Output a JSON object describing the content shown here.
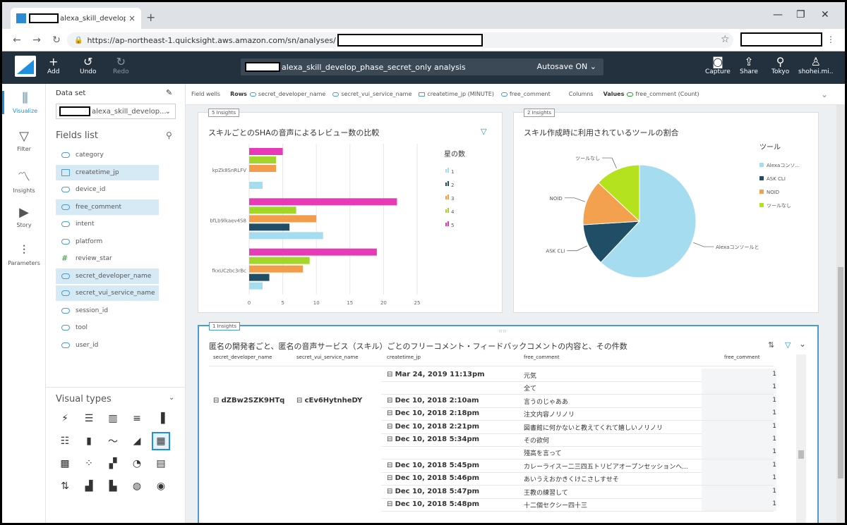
{
  "browser": {
    "tab_title": "alexa_skill_develop_phase",
    "tab_close": "×",
    "new_tab": "+",
    "url": "https://ap-northeast-1.quicksight.aws.amazon.com/sn/analyses/",
    "window_min": "—",
    "window_max": "❐",
    "window_close": "✕"
  },
  "header": {
    "add": "Add",
    "undo": "Undo",
    "redo": "Redo",
    "analysis_title": "alexa_skill_develop_phase_secret_only analysis",
    "autosave": "Autosave ON",
    "capture": "Capture",
    "share": "Share",
    "region": "Tokyo",
    "user": "shohei.mi.."
  },
  "leftnav": {
    "visualize": "Visualize",
    "filter": "Filter",
    "insights": "Insights",
    "story": "Story",
    "parameters": "Parameters"
  },
  "fields_pane": {
    "dataset_label": "Data set",
    "dataset_value": "alexa_skill_develop...",
    "fields_list": "Fields list",
    "fields": [
      {
        "name": "category",
        "selected": false,
        "type": "text"
      },
      {
        "name": "createtime_jp",
        "selected": true,
        "type": "date"
      },
      {
        "name": "device_id",
        "selected": false,
        "type": "text"
      },
      {
        "name": "free_comment",
        "selected": true,
        "type": "text"
      },
      {
        "name": "intent",
        "selected": false,
        "type": "text"
      },
      {
        "name": "platform",
        "selected": false,
        "type": "text"
      },
      {
        "name": "review_star",
        "selected": false,
        "type": "number"
      },
      {
        "name": "secret_developer_name",
        "selected": true,
        "type": "text"
      },
      {
        "name": "secret_vui_service_name",
        "selected": true,
        "type": "text"
      },
      {
        "name": "session_id",
        "selected": false,
        "type": "text"
      },
      {
        "name": "tool",
        "selected": false,
        "type": "text"
      },
      {
        "name": "user_id",
        "selected": false,
        "type": "text"
      }
    ],
    "visual_types": "Visual types"
  },
  "field_wells": {
    "label": "Field wells",
    "rows": "Rows",
    "row_fields": [
      "secret_developer_name",
      "secret_vui_service_name",
      "createtime_jp (MINUTE)",
      "free_comment"
    ],
    "columns": "Columns",
    "values": "Values",
    "value_field": "free_comment (Count)"
  },
  "visuals": {
    "bar": {
      "insights": "5 Insights",
      "title": "スキルごとのSHAの音声によるレビュー数の比較"
    },
    "pie": {
      "insights": "2 Insights",
      "title": "スキル作成時に利用されているツールの割合"
    },
    "table": {
      "insights": "1 Insights",
      "title": "匿名の開発者ごと、匿名の音声サービス（スキル）ごとのフリーコメント・フィードバックコメントの内容と、その件数",
      "headers": [
        "secret_developer_name",
        "secret_vui_service_name",
        "createtime_jp",
        "free_comment",
        "free_comment"
      ],
      "rows": [
        {
          "dev": "",
          "svc": "",
          "time": "Mar 24, 2019 11:13pm",
          "comment": "元気",
          "count": "1"
        },
        {
          "dev": "",
          "svc": "",
          "time": "",
          "comment": "全て",
          "count": "1"
        },
        {
          "dev": "dZBw2SZK9HTq",
          "svc": "cEv6HytnheDY",
          "time": "Dec 10, 2018 2:10am",
          "comment": "言うのじゃああ",
          "count": "1"
        },
        {
          "dev": "",
          "svc": "",
          "time": "Dec 10, 2018 2:18pm",
          "comment": "注文内容ノリノリ",
          "count": "1"
        },
        {
          "dev": "",
          "svc": "",
          "time": "Dec 10, 2018 2:21pm",
          "comment": "図書館に何かないと教えてくれて嬉しいノリノリ",
          "count": "1"
        },
        {
          "dev": "",
          "svc": "",
          "time": "Dec 10, 2018 5:34pm",
          "comment": "その欲何",
          "count": "1"
        },
        {
          "dev": "",
          "svc": "",
          "time": "",
          "comment": "殘高を言って",
          "count": "1"
        },
        {
          "dev": "",
          "svc": "",
          "time": "Dec 10, 2018 5:45pm",
          "comment": "カレーライスー二三四五トリビアオープンセッションへ...",
          "count": "1"
        },
        {
          "dev": "",
          "svc": "",
          "time": "Dec 10, 2018 5:46pm",
          "comment": "あいうえおかきくけこさしすせそ",
          "count": "1"
        },
        {
          "dev": "",
          "svc": "",
          "time": "Dec 10, 2018 5:47pm",
          "comment": "王教の練習して",
          "count": "1"
        },
        {
          "dev": "",
          "svc": "",
          "time": "Dec 10, 2018 5:48pm",
          "comment": "十二個セクシー四十三",
          "count": "1"
        }
      ]
    }
  },
  "chart_data": [
    {
      "type": "bar",
      "orientation": "horizontal",
      "title": "スキルごとのSHAの音声によるレビュー数の比較",
      "categories": [
        "kpZk8SnRLFV",
        "bfLb9lkaev4S8",
        "fkxUCzbc3rBc"
      ],
      "legend_title": "星の数",
      "series": [
        {
          "name": "1",
          "color": "#a6dcf0",
          "values": [
            2,
            11,
            2
          ]
        },
        {
          "name": "2",
          "color": "#1f4e66",
          "values": [
            0,
            6,
            3
          ]
        },
        {
          "name": "3",
          "color": "#f39c4a",
          "values": [
            4,
            10,
            8
          ]
        },
        {
          "name": "4",
          "color": "#a3d62b",
          "values": [
            4,
            7,
            9
          ]
        },
        {
          "name": "5",
          "color": "#e63ab7",
          "values": [
            5,
            22,
            19
          ]
        }
      ],
      "xticks": [
        "0",
        "5",
        "10",
        "15",
        "20",
        "25"
      ],
      "xlim": [
        0,
        25
      ],
      "grid": true,
      "legend_position": "right"
    },
    {
      "type": "pie",
      "title": "スキル作成時に利用されているツールの割合",
      "legend_title": "ツール",
      "slices": [
        {
          "label": "Alexaコンソールと",
          "legend": "Alexaコンソ...",
          "value": 62,
          "color": "#a6dcf0"
        },
        {
          "label": "ASK CLI",
          "legend": "ASK CLI",
          "value": 12,
          "color": "#1f4e66"
        },
        {
          "label": "NOID",
          "legend": "NOID",
          "value": 13,
          "color": "#f3a04f"
        },
        {
          "label": "ツールなし",
          "legend": "ツールなし",
          "value": 13,
          "color": "#b5e21f"
        }
      ],
      "legend_position": "right"
    }
  ]
}
